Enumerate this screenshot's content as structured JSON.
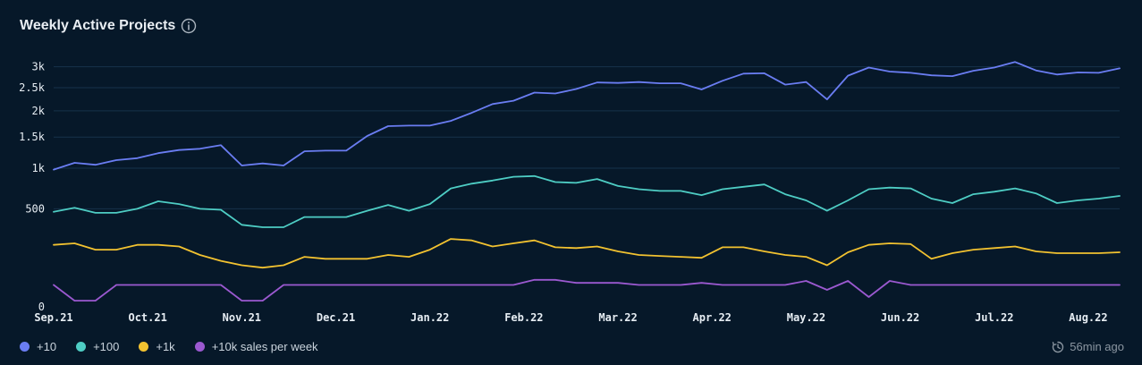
{
  "header": {
    "title": "Weekly Active Projects"
  },
  "footer": {
    "updated": "56min ago"
  },
  "colors": {
    "background": "#061829",
    "grid": "#16324a"
  },
  "chart_data": {
    "type": "line",
    "title": "Weekly Active Projects",
    "xlabel": "",
    "ylabel": "",
    "yscale": "sqrt",
    "ylim": [
      0,
      3300
    ],
    "yticks": [
      0,
      500,
      1000,
      1500,
      2000,
      2500,
      3000
    ],
    "ytick_labels": [
      "0",
      "500",
      "1k",
      "1.5k",
      "2k",
      "2.5k",
      "3k"
    ],
    "x_weeks": 52,
    "xticks": [
      {
        "label": "Sep.21",
        "week": 0
      },
      {
        "label": "Oct.21",
        "week": 4.5
      },
      {
        "label": "Nov.21",
        "week": 9
      },
      {
        "label": "Dec.21",
        "week": 13.5
      },
      {
        "label": "Jan.22",
        "week": 18
      },
      {
        "label": "Feb.22",
        "week": 22.5
      },
      {
        "label": "Mar.22",
        "week": 27
      },
      {
        "label": "Apr.22",
        "week": 31.5
      },
      {
        "label": "May.22",
        "week": 36
      },
      {
        "label": "Jun.22",
        "week": 40.5
      },
      {
        "label": "Jul.22",
        "week": 45
      },
      {
        "label": "Aug.22",
        "week": 49.5
      }
    ],
    "grid": true,
    "legend_position": "bottom-left",
    "series": [
      {
        "name": "+10",
        "color": "#6a7df2",
        "values": [
          980,
          1080,
          1050,
          1120,
          1150,
          1230,
          1280,
          1300,
          1360,
          1040,
          1070,
          1040,
          1260,
          1270,
          1270,
          1520,
          1700,
          1710,
          1710,
          1800,
          1960,
          2140,
          2210,
          2390,
          2370,
          2470,
          2620,
          2610,
          2630,
          2600,
          2600,
          2460,
          2660,
          2830,
          2840,
          2570,
          2630,
          2240,
          2780,
          2980,
          2880,
          2850,
          2790,
          2770,
          2900,
          2980,
          3120,
          2910,
          2810,
          2860,
          2850,
          2960
        ]
      },
      {
        "name": "+100",
        "color": "#4ecdc4",
        "values": [
          470,
          510,
          460,
          460,
          500,
          580,
          550,
          500,
          490,
          350,
          330,
          330,
          420,
          420,
          420,
          480,
          540,
          480,
          550,
          730,
          790,
          830,
          880,
          890,
          810,
          800,
          850,
          760,
          720,
          700,
          700,
          650,
          720,
          750,
          780,
          660,
          590,
          480,
          590,
          720,
          740,
          730,
          610,
          560,
          660,
          690,
          730,
          670,
          560,
          590,
          610,
          640
        ]
      },
      {
        "name": "+1k",
        "color": "#f2c230",
        "values": [
          200,
          210,
          170,
          170,
          200,
          200,
          190,
          140,
          110,
          90,
          80,
          90,
          130,
          120,
          120,
          120,
          140,
          130,
          170,
          240,
          230,
          190,
          210,
          230,
          185,
          180,
          190,
          160,
          140,
          135,
          130,
          125,
          185,
          185,
          160,
          140,
          130,
          90,
          155,
          200,
          210,
          205,
          120,
          150,
          170,
          180,
          190,
          160,
          150,
          150,
          150,
          155
        ]
      },
      {
        "name": "+10k sales per week",
        "color": "#9b59d0",
        "values": [
          25,
          2,
          2,
          25,
          25,
          25,
          25,
          25,
          25,
          2,
          2,
          25,
          25,
          25,
          25,
          25,
          25,
          25,
          25,
          25,
          25,
          25,
          25,
          38,
          38,
          30,
          30,
          30,
          25,
          25,
          25,
          30,
          25,
          25,
          25,
          25,
          35,
          15,
          35,
          5,
          35,
          25,
          25,
          25,
          25,
          25,
          25,
          25,
          25,
          25,
          25,
          25
        ]
      }
    ]
  }
}
